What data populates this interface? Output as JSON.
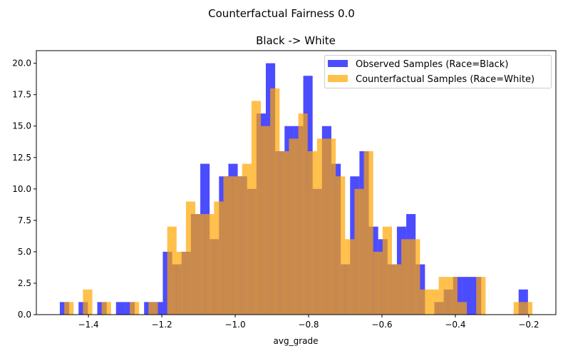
{
  "figure": {
    "suptitle": "Counterfactual Fairness 0.0"
  },
  "chart_data": {
    "type": "histogram",
    "title": "Black -> White",
    "xlabel": "avg_grade",
    "ylabel": "",
    "xlim": [
      -1.542,
      -0.126
    ],
    "ylim": [
      0,
      21
    ],
    "grid": false,
    "legend_position": "top-right",
    "x_ticks": [
      -1.4,
      -1.2,
      -1.0,
      -0.8,
      -0.6,
      -0.4,
      -0.2
    ],
    "x_tick_labels": [
      "−1.4",
      "−1.2",
      "−1.0",
      "−0.8",
      "−0.6",
      "−0.4",
      "−0.2"
    ],
    "y_ticks": [
      0,
      2.5,
      5,
      7.5,
      10,
      12.5,
      15,
      17.5,
      20
    ],
    "y_tick_labels": [
      "0.0",
      "2.5",
      "5.0",
      "7.5",
      "10.0",
      "12.5",
      "15.0",
      "17.5",
      "20.0"
    ],
    "series": [
      {
        "name": "Observed Samples (Race=Black)",
        "color": "#0000ff",
        "alpha": 0.7,
        "bin_start": -1.478,
        "bin_end": -0.202,
        "counts": [
          1,
          0,
          1,
          0,
          1,
          0,
          1,
          1,
          0,
          1,
          1,
          5,
          4,
          5,
          8,
          12,
          6,
          11,
          12,
          11,
          10,
          16,
          20,
          13,
          15,
          15,
          19,
          10,
          15,
          12,
          4,
          11,
          13,
          7,
          6,
          4,
          7,
          8,
          4,
          0,
          1,
          2,
          3,
          3,
          3,
          0,
          0,
          0,
          0,
          2
        ]
      },
      {
        "name": "Counterfactual Samples (Race=White)",
        "color": "#ffa500",
        "alpha": 0.7,
        "bin_start": -1.466,
        "bin_end": -0.19,
        "counts": [
          1,
          0,
          2,
          0,
          1,
          0,
          0,
          1,
          0,
          1,
          0,
          7,
          5,
          9,
          8,
          8,
          9,
          11,
          11,
          12,
          17,
          15,
          18,
          13,
          14,
          16,
          13,
          14,
          14,
          11,
          6,
          10,
          13,
          5,
          7,
          4,
          6,
          6,
          2,
          2,
          3,
          3,
          1,
          0,
          3,
          0,
          0,
          0,
          1,
          1
        ]
      }
    ]
  }
}
